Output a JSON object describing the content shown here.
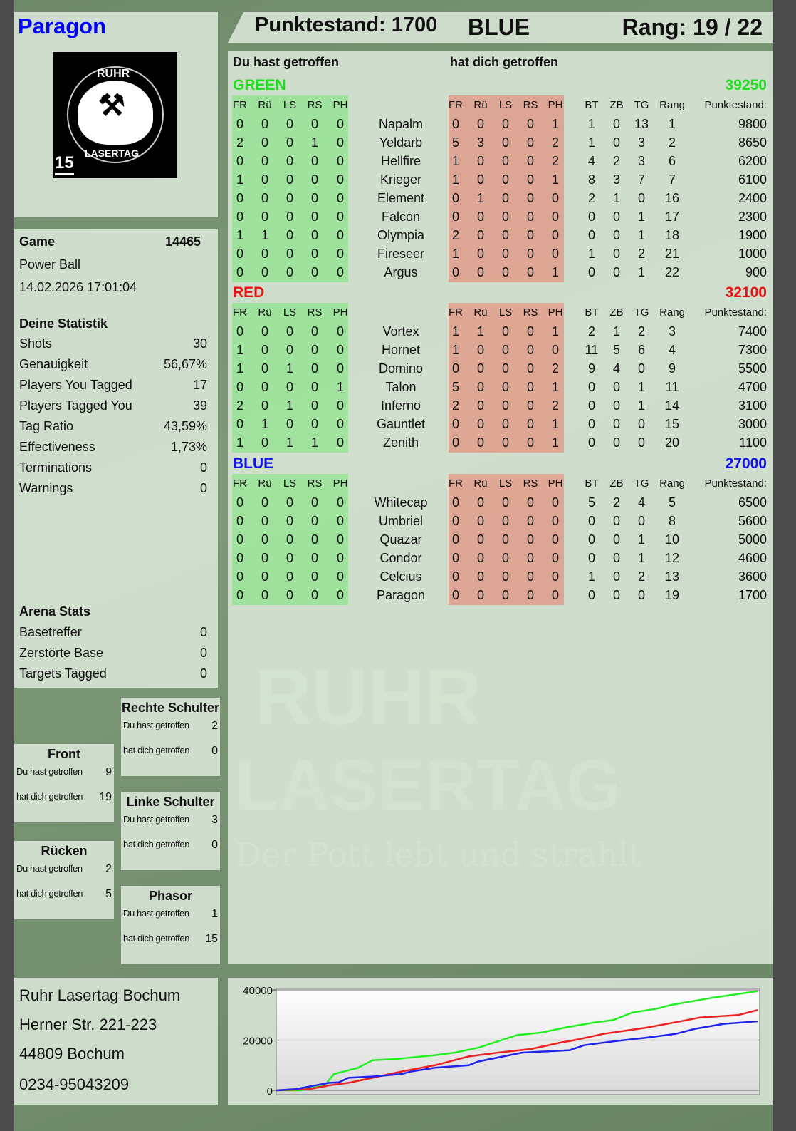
{
  "player": {
    "name": "Paragon",
    "name_color": "#0000ff"
  },
  "header": {
    "score_label": "Punktestand: 1700",
    "team": "BLUE",
    "rank_label": "Rang: 19 / 22"
  },
  "logo": {
    "top_text": "RUHR",
    "bottom_text": "LASERTAG",
    "badge_number": "15",
    "icon": "crossed-hammers-icon"
  },
  "watermark": {
    "line1": "RUHR",
    "line2": "LASERTAG",
    "slogan": "Der Pott lebt und strahlt"
  },
  "game": {
    "label": "Game",
    "id": "14465",
    "mode": "Power Ball",
    "datetime": "14.02.2026 17:01:04"
  },
  "stats": {
    "title": "Deine Statistik",
    "rows": [
      {
        "label": "Shots",
        "value": "30"
      },
      {
        "label": "Genauigkeit",
        "value": "56,67%"
      },
      {
        "label": "Players You Tagged",
        "value": "17"
      },
      {
        "label": "Players Tagged You",
        "value": "39"
      },
      {
        "label": "Tag Ratio",
        "value": "43,59%"
      },
      {
        "label": "Effectiveness",
        "value": "1,73%"
      },
      {
        "label": "Terminations",
        "value": "0"
      },
      {
        "label": "Warnings",
        "value": "0"
      }
    ]
  },
  "arena": {
    "title": "Arena Stats",
    "rows": [
      {
        "label": "Basetreffer",
        "value": "0"
      },
      {
        "label": "Zerstörte Base",
        "value": "0"
      },
      {
        "label": "Targets Tagged",
        "value": "0"
      }
    ]
  },
  "zones": {
    "hit_label": "Du hast getroffen",
    "got_label": "hat dich getroffen",
    "items": [
      {
        "title": "Rechte Schulter",
        "hit": "2",
        "got": "0"
      },
      {
        "title": "Front",
        "hit": "9",
        "got": "19"
      },
      {
        "title": "Linke Schulter",
        "hit": "3",
        "got": "0"
      },
      {
        "title": "Rücken",
        "hit": "2",
        "got": "5"
      },
      {
        "title": "Phasor",
        "hit": "1",
        "got": "15"
      }
    ]
  },
  "address": {
    "line1": "Ruhr Lasertag Bochum",
    "line2": "Herner Str. 221-223",
    "line3": "44809 Bochum",
    "phone": "0234-95043209"
  },
  "table": {
    "hit_heading": "Du hast getroffen",
    "got_heading": "hat dich getroffen",
    "zone_cols": [
      "FR",
      "Rü",
      "LS",
      "RS",
      "PH"
    ],
    "stat_cols": [
      "BT",
      "ZB",
      "TG",
      "Rang",
      "Punktestand:"
    ],
    "teams": [
      {
        "name": "GREEN",
        "score": "39250",
        "color": "#22dd22",
        "players": [
          {
            "hit": [
              "0",
              "0",
              "0",
              "0",
              "0"
            ],
            "name": "Napalm",
            "got": [
              "0",
              "0",
              "0",
              "0",
              "1"
            ],
            "stats": [
              "1",
              "0",
              "13",
              "1",
              "9800"
            ]
          },
          {
            "hit": [
              "2",
              "0",
              "0",
              "1",
              "0"
            ],
            "name": "Yeldarb",
            "got": [
              "5",
              "3",
              "0",
              "0",
              "2"
            ],
            "stats": [
              "1",
              "0",
              "3",
              "2",
              "8650"
            ]
          },
          {
            "hit": [
              "0",
              "0",
              "0",
              "0",
              "0"
            ],
            "name": "Hellfire",
            "got": [
              "1",
              "0",
              "0",
              "0",
              "2"
            ],
            "stats": [
              "4",
              "2",
              "3",
              "6",
              "6200"
            ]
          },
          {
            "hit": [
              "1",
              "0",
              "0",
              "0",
              "0"
            ],
            "name": "Krieger",
            "got": [
              "1",
              "0",
              "0",
              "0",
              "1"
            ],
            "stats": [
              "8",
              "3",
              "7",
              "7",
              "6100"
            ]
          },
          {
            "hit": [
              "0",
              "0",
              "0",
              "0",
              "0"
            ],
            "name": "Element",
            "got": [
              "0",
              "1",
              "0",
              "0",
              "0"
            ],
            "stats": [
              "2",
              "1",
              "0",
              "16",
              "2400"
            ]
          },
          {
            "hit": [
              "0",
              "0",
              "0",
              "0",
              "0"
            ],
            "name": "Falcon",
            "got": [
              "0",
              "0",
              "0",
              "0",
              "0"
            ],
            "stats": [
              "0",
              "0",
              "1",
              "17",
              "2300"
            ]
          },
          {
            "hit": [
              "1",
              "1",
              "0",
              "0",
              "0"
            ],
            "name": "Olympia",
            "got": [
              "2",
              "0",
              "0",
              "0",
              "0"
            ],
            "stats": [
              "0",
              "0",
              "1",
              "18",
              "1900"
            ]
          },
          {
            "hit": [
              "0",
              "0",
              "0",
              "0",
              "0"
            ],
            "name": "Fireseer",
            "got": [
              "1",
              "0",
              "0",
              "0",
              "0"
            ],
            "stats": [
              "1",
              "0",
              "2",
              "21",
              "1000"
            ]
          },
          {
            "hit": [
              "0",
              "0",
              "0",
              "0",
              "0"
            ],
            "name": "Argus",
            "got": [
              "0",
              "0",
              "0",
              "0",
              "1"
            ],
            "stats": [
              "0",
              "0",
              "1",
              "22",
              "900"
            ]
          }
        ]
      },
      {
        "name": "RED",
        "score": "32100",
        "color": "#ee1111",
        "players": [
          {
            "hit": [
              "0",
              "0",
              "0",
              "0",
              "0"
            ],
            "name": "Vortex",
            "got": [
              "1",
              "1",
              "0",
              "0",
              "1"
            ],
            "stats": [
              "2",
              "1",
              "2",
              "3",
              "7400"
            ]
          },
          {
            "hit": [
              "1",
              "0",
              "0",
              "0",
              "0"
            ],
            "name": "Hornet",
            "got": [
              "1",
              "0",
              "0",
              "0",
              "0"
            ],
            "stats": [
              "11",
              "5",
              "6",
              "4",
              "7300"
            ]
          },
          {
            "hit": [
              "1",
              "0",
              "1",
              "0",
              "0"
            ],
            "name": "Domino",
            "got": [
              "0",
              "0",
              "0",
              "0",
              "2"
            ],
            "stats": [
              "9",
              "4",
              "0",
              "9",
              "5500"
            ]
          },
          {
            "hit": [
              "0",
              "0",
              "0",
              "0",
              "1"
            ],
            "name": "Talon",
            "got": [
              "5",
              "0",
              "0",
              "0",
              "1"
            ],
            "stats": [
              "0",
              "0",
              "1",
              "11",
              "4700"
            ]
          },
          {
            "hit": [
              "2",
              "0",
              "1",
              "0",
              "0"
            ],
            "name": "Inferno",
            "got": [
              "2",
              "0",
              "0",
              "0",
              "2"
            ],
            "stats": [
              "0",
              "0",
              "1",
              "14",
              "3100"
            ]
          },
          {
            "hit": [
              "0",
              "1",
              "0",
              "0",
              "0"
            ],
            "name": "Gauntlet",
            "got": [
              "0",
              "0",
              "0",
              "0",
              "1"
            ],
            "stats": [
              "0",
              "0",
              "0",
              "15",
              "3000"
            ]
          },
          {
            "hit": [
              "1",
              "0",
              "1",
              "1",
              "0"
            ],
            "name": "Zenith",
            "got": [
              "0",
              "0",
              "0",
              "0",
              "1"
            ],
            "stats": [
              "0",
              "0",
              "0",
              "20",
              "1100"
            ]
          }
        ]
      },
      {
        "name": "BLUE",
        "score": "27000",
        "color": "#1111ee",
        "players": [
          {
            "hit": [
              "0",
              "0",
              "0",
              "0",
              "0"
            ],
            "name": "Whitecap",
            "got": [
              "0",
              "0",
              "0",
              "0",
              "0"
            ],
            "stats": [
              "5",
              "2",
              "4",
              "5",
              "6500"
            ]
          },
          {
            "hit": [
              "0",
              "0",
              "0",
              "0",
              "0"
            ],
            "name": "Umbriel",
            "got": [
              "0",
              "0",
              "0",
              "0",
              "0"
            ],
            "stats": [
              "0",
              "0",
              "0",
              "8",
              "5600"
            ]
          },
          {
            "hit": [
              "0",
              "0",
              "0",
              "0",
              "0"
            ],
            "name": "Quazar",
            "got": [
              "0",
              "0",
              "0",
              "0",
              "0"
            ],
            "stats": [
              "0",
              "0",
              "1",
              "10",
              "5000"
            ]
          },
          {
            "hit": [
              "0",
              "0",
              "0",
              "0",
              "0"
            ],
            "name": "Condor",
            "got": [
              "0",
              "0",
              "0",
              "0",
              "0"
            ],
            "stats": [
              "0",
              "0",
              "1",
              "12",
              "4600"
            ]
          },
          {
            "hit": [
              "0",
              "0",
              "0",
              "0",
              "0"
            ],
            "name": "Celcius",
            "got": [
              "0",
              "0",
              "0",
              "0",
              "0"
            ],
            "stats": [
              "1",
              "0",
              "2",
              "13",
              "3600"
            ]
          },
          {
            "hit": [
              "0",
              "0",
              "0",
              "0",
              "0"
            ],
            "name": "Paragon",
            "got": [
              "0",
              "0",
              "0",
              "0",
              "0"
            ],
            "stats": [
              "0",
              "0",
              "0",
              "19",
              "1700"
            ]
          }
        ]
      }
    ]
  },
  "chart_data": {
    "type": "line",
    "title": "",
    "xlabel": "",
    "ylabel": "",
    "ylim": [
      0,
      40000
    ],
    "yticks": [
      "0",
      "20000",
      "40000"
    ],
    "grid": "horizontal",
    "x_unit": "percent of game time (no labels shown)",
    "series": [
      {
        "color": "#22ee22",
        "points": [
          [
            0,
            0
          ],
          [
            5,
            0
          ],
          [
            10,
            1900
          ],
          [
            12,
            6500
          ],
          [
            17,
            9000
          ],
          [
            20,
            12000
          ],
          [
            25,
            12500
          ],
          [
            33,
            14000
          ],
          [
            37,
            15000
          ],
          [
            42,
            17000
          ],
          [
            46,
            19500
          ],
          [
            50,
            22000
          ],
          [
            55,
            23000
          ],
          [
            60,
            25000
          ],
          [
            66,
            27000
          ],
          [
            70,
            28000
          ],
          [
            74,
            31000
          ],
          [
            79,
            32500
          ],
          [
            82,
            34000
          ],
          [
            91,
            37000
          ],
          [
            100,
            39500
          ]
        ]
      },
      {
        "color": "#ee2222",
        "points": [
          [
            0,
            0
          ],
          [
            7,
            500
          ],
          [
            11,
            2000
          ],
          [
            15,
            3000
          ],
          [
            20,
            5000
          ],
          [
            26,
            7500
          ],
          [
            33,
            10000
          ],
          [
            40,
            13500
          ],
          [
            46,
            15000
          ],
          [
            53,
            16500
          ],
          [
            59,
            19000
          ],
          [
            62,
            20000
          ],
          [
            68,
            22500
          ],
          [
            77,
            25000
          ],
          [
            84,
            27500
          ],
          [
            88,
            29000
          ],
          [
            96,
            30000
          ],
          [
            100,
            32000
          ]
        ]
      },
      {
        "color": "#2222ee",
        "points": [
          [
            0,
            0
          ],
          [
            4,
            500
          ],
          [
            11,
            3000
          ],
          [
            13,
            3200
          ],
          [
            15,
            5000
          ],
          [
            20,
            5500
          ],
          [
            26,
            6500
          ],
          [
            28,
            7500
          ],
          [
            33,
            9000
          ],
          [
            40,
            10000
          ],
          [
            42,
            11500
          ],
          [
            51,
            15000
          ],
          [
            61,
            16000
          ],
          [
            64,
            18000
          ],
          [
            70,
            19500
          ],
          [
            77,
            21000
          ],
          [
            83,
            22500
          ],
          [
            87,
            24500
          ],
          [
            93,
            26500
          ],
          [
            100,
            27500
          ]
        ]
      }
    ]
  }
}
